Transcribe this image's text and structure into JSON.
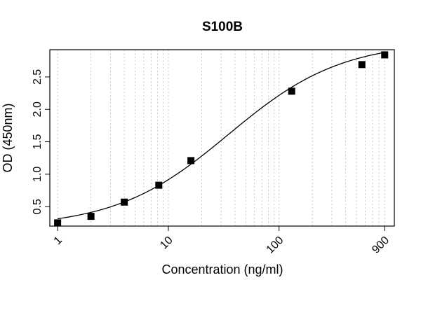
{
  "chart_data": {
    "type": "scatter",
    "title": "S100B",
    "xlabel": "Concentration (ng/ml)",
    "ylabel": "OD (450nm)",
    "x_scale": "log",
    "xlim": [
      0.85,
      1100
    ],
    "ylim": [
      0.2,
      2.92
    ],
    "x_ticks": [
      1,
      10,
      100,
      900
    ],
    "x_tick_labels": [
      "1",
      "10",
      "100",
      "900"
    ],
    "y_ticks": [
      0.5,
      1.0,
      1.5,
      2.0,
      2.5
    ],
    "y_tick_labels": [
      "0.5",
      "1.0",
      "1.5",
      "2.0",
      "2.5"
    ],
    "grid": "vertical dotted at log minor ticks",
    "series": [
      {
        "marker": "square",
        "x": [
          1,
          2,
          4,
          8.2,
          16,
          130,
          560,
          900
        ],
        "y": [
          0.25,
          0.35,
          0.57,
          0.83,
          1.21,
          2.28,
          2.69,
          2.84
        ]
      }
    ],
    "fit_curve": {
      "type": "4PL",
      "bottom": 0.18,
      "top": 3.05,
      "ec50": 35,
      "hill": 0.85
    },
    "colors": {
      "points": "#000000",
      "curve": "#000000",
      "grid": "#bbbbbb",
      "axes": "#000000"
    }
  }
}
